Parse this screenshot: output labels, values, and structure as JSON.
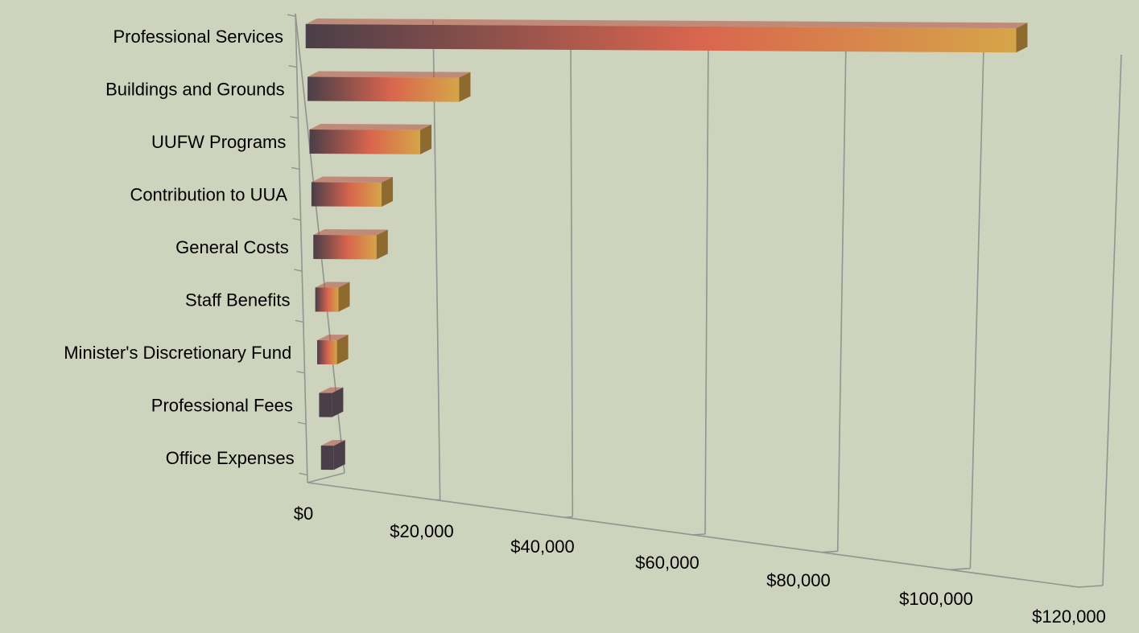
{
  "chart_data": {
    "type": "bar",
    "orientation": "horizontal",
    "style": "3d-perspective",
    "title": "",
    "xlabel": "",
    "ylabel": "",
    "categories": [
      "Professional Services",
      "Buildings and Grounds",
      "UUFW Programs",
      "Contribution to UUA",
      "General Costs",
      "Staff Benefits",
      "Minister's Discretionary Fund",
      "Professional Fees",
      "Office Expenses"
    ],
    "values": [
      105000,
      22500,
      16500,
      10500,
      9500,
      3500,
      3000,
      1000,
      1000
    ],
    "xlim": [
      0,
      120000
    ],
    "x_ticks": [
      0,
      20000,
      40000,
      60000,
      80000,
      100000,
      120000
    ],
    "x_tick_labels": [
      "$0",
      "$20,000",
      "$40,000",
      "$60,000",
      "$80,000",
      "$100,000",
      "$120,000"
    ],
    "grid": true,
    "legend": "none",
    "colors": {
      "background": "#CDD3BC",
      "gradient_start": "#4A3E48",
      "gradient_mid": "#D9654E",
      "gradient_end": "#D6A548",
      "bar_end_cap": "#8E6A2E",
      "bar_top": "#B4503F",
      "grid_line": "#8F9590"
    }
  }
}
